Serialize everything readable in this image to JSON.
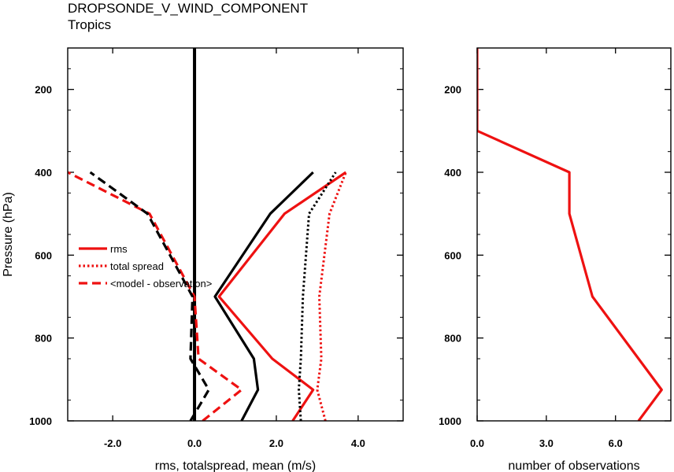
{
  "header": {
    "title": "DROPSONDE_V_WIND_COMPONENT",
    "subtitle": "Tropics"
  },
  "chart_data": [
    {
      "type": "line",
      "xlabel": "rms, totalspread, mean (m/s)",
      "ylabel": "Pressure (hPa)",
      "xlim": [
        -3.1,
        5.1
      ],
      "ylim": [
        1000,
        100
      ],
      "y_inverted": true,
      "grid": false,
      "xticks": [
        -2.0,
        0.0,
        2.0,
        4.0
      ],
      "xtick_labels": [
        "-2.0",
        "0.0",
        "2.0",
        "4.0"
      ],
      "yticks": [
        200,
        400,
        600,
        800,
        1000
      ],
      "ytick_labels": [
        "200",
        "400",
        "600",
        "800",
        "1000"
      ],
      "legend_position": "center-left",
      "legend": [
        {
          "label": "rms",
          "style": "solid",
          "color": "#ee1111"
        },
        {
          "label": "total spread",
          "style": "dotted",
          "color": "#ee1111"
        },
        {
          "label": "<model - observation>",
          "style": "dashed",
          "color": "#ee1111"
        }
      ],
      "series": [
        {
          "color": "#ee1111",
          "style": "solid",
          "points": [
            [
              2.4,
              1000
            ],
            [
              2.9,
              925
            ],
            [
              1.9,
              850
            ],
            [
              0.6,
              700
            ],
            [
              2.2,
              500
            ],
            [
              3.7,
              400
            ]
          ]
        },
        {
          "color": "#ee1111",
          "style": "dotted",
          "points": [
            [
              3.2,
              1000
            ],
            [
              3.0,
              925
            ],
            [
              3.1,
              850
            ],
            [
              3.05,
              700
            ],
            [
              3.3,
              500
            ],
            [
              3.7,
              400
            ]
          ]
        },
        {
          "color": "#ee1111",
          "style": "dashed",
          "points": [
            [
              0.2,
              1000
            ],
            [
              1.15,
              925
            ],
            [
              0.1,
              850
            ],
            [
              0.0,
              700
            ],
            [
              -1.1,
              500
            ],
            [
              -3.1,
              400
            ]
          ]
        },
        {
          "color": "#000000",
          "style": "solid",
          "points": [
            [
              1.15,
              1000
            ],
            [
              1.55,
              925
            ],
            [
              1.45,
              850
            ],
            [
              0.5,
              700
            ],
            [
              1.85,
              500
            ],
            [
              2.9,
              400
            ]
          ]
        },
        {
          "color": "#000000",
          "style": "dotted",
          "points": [
            [
              2.6,
              1000
            ],
            [
              2.55,
              925
            ],
            [
              2.6,
              850
            ],
            [
              2.65,
              700
            ],
            [
              2.8,
              500
            ],
            [
              3.45,
              400
            ]
          ]
        },
        {
          "color": "#000000",
          "style": "dashed",
          "points": [
            [
              -0.1,
              1000
            ],
            [
              0.35,
              925
            ],
            [
              -0.1,
              850
            ],
            [
              -0.05,
              700
            ],
            [
              -1.15,
              500
            ],
            [
              -2.55,
              400
            ]
          ]
        }
      ],
      "reference_line": {
        "x": 0,
        "color": "#000000"
      }
    },
    {
      "type": "line",
      "xlabel": "number of observations",
      "ylabel": "",
      "xlim": [
        0,
        8.4
      ],
      "ylim": [
        1000,
        100
      ],
      "y_inverted": true,
      "grid": false,
      "xticks": [
        0,
        3,
        6
      ],
      "xtick_labels": [
        "0.0",
        "3.0",
        "6.0"
      ],
      "yticks": [
        200,
        400,
        600,
        800,
        1000
      ],
      "ytick_labels": [
        "200",
        "400",
        "600",
        "800",
        "1000"
      ],
      "series": [
        {
          "color": "#ee1111",
          "style": "solid",
          "points": [
            [
              7.0,
              1000
            ],
            [
              8.0,
              925
            ],
            [
              5.0,
              700
            ],
            [
              4.0,
              500
            ],
            [
              4.0,
              400
            ],
            [
              0.0,
              300
            ],
            [
              0.0,
              100
            ]
          ]
        }
      ]
    }
  ]
}
